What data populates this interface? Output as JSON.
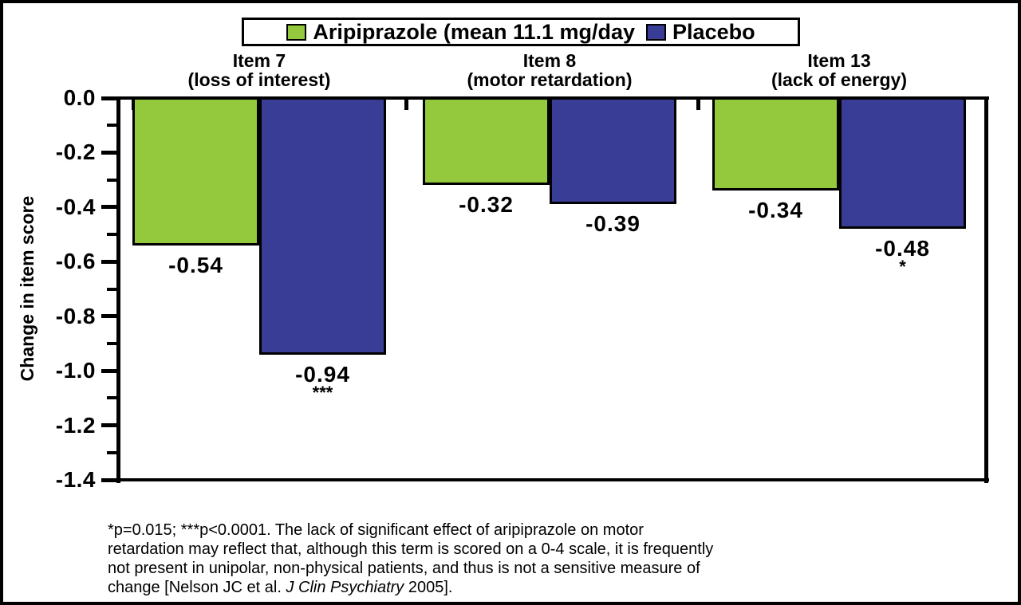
{
  "figure": {
    "background": "#ffffff",
    "border_color": "#000000"
  },
  "chart_data": {
    "type": "bar",
    "title": "",
    "ylabel": "Change in item score",
    "xlabel": "",
    "ylim": [
      -1.4,
      0.0
    ],
    "ytick_step": 0.2,
    "ytick_labels": [
      "0.0",
      "-0.2",
      "-0.4",
      "-0.6",
      "-0.8",
      "-1.0",
      "-1.2",
      "-1.4"
    ],
    "grid": false,
    "legend_position": "top-center",
    "categories": [
      {
        "label": "Item 7",
        "sublabel": "(loss of interest)"
      },
      {
        "label": "Item 8",
        "sublabel": "(motor retardation)"
      },
      {
        "label": "Item 13",
        "sublabel": "(lack of energy)"
      }
    ],
    "series": [
      {
        "name": "Aripiprazole (mean 11.1 mg/day",
        "color": "#94C83D",
        "values": [
          -0.54,
          -0.32,
          -0.34
        ],
        "data_labels": [
          "-0.54",
          "-0.32",
          "-0.34"
        ],
        "annotations": [
          "",
          "",
          ""
        ]
      },
      {
        "name": "Placebo",
        "color": "#3A3D96",
        "values": [
          -0.94,
          -0.39,
          -0.48
        ],
        "data_labels": [
          "-0.94",
          "-0.39",
          "-0.48"
        ],
        "annotations": [
          "***",
          "",
          "*"
        ]
      }
    ]
  },
  "footnote": {
    "lines": [
      "*p=0.015; ***p<0.0001. The lack of significant effect of aripiprazole on motor",
      "retardation may reflect that, although this term is scored on a 0-4 scale, it is frequently",
      "not present in unipolar, non-physical patients, and thus is not a sensitive measure of"
    ],
    "last_line": {
      "prefix": "change [Nelson JC et al. ",
      "italic": "J Clin Psychiatry",
      "suffix": " 2005]."
    }
  }
}
